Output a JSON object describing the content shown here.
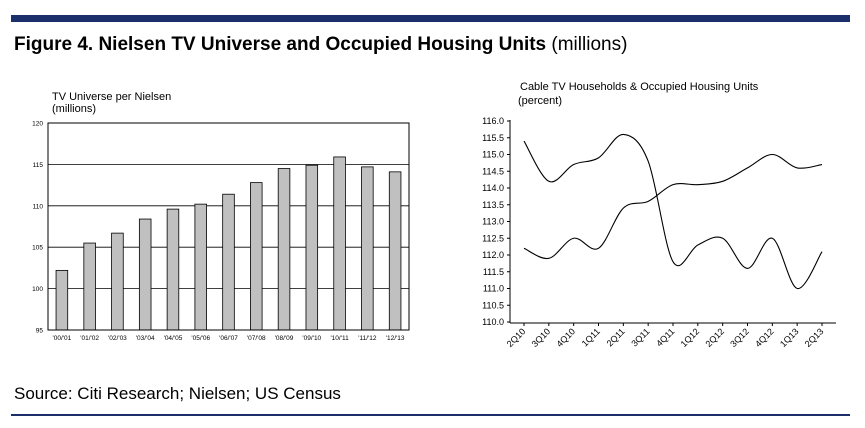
{
  "figure": {
    "title_bold": "Figure 4. Nielsen TV Universe and Occupied Housing Units",
    "title_light": "(millions)",
    "source": "Source: Citi Research; Nielsen; US Census",
    "rule_color": "#1b2f6b"
  },
  "chart_data": [
    {
      "type": "bar",
      "title": "TV Universe per Nielsen",
      "subtitle": "(millions)",
      "categories": [
        "'00/'01",
        "'01/'02",
        "'02/'03",
        "'03/'04",
        "'04/'05",
        "'05/'06",
        "'06/'07",
        "'07/'08",
        "'08/'09",
        "'09/'10",
        "'10/'11",
        "'11/'12",
        "'12/'13"
      ],
      "values": [
        102.2,
        105.5,
        106.7,
        108.4,
        109.6,
        110.2,
        111.4,
        112.8,
        114.5,
        114.9,
        115.9,
        114.7,
        114.1
      ],
      "ylim": [
        95,
        120
      ],
      "yticks": [
        95,
        100,
        105,
        110,
        115,
        120
      ],
      "grid": true,
      "bar_color": "#c0c0c0"
    },
    {
      "type": "line",
      "title": "Cable TV Households & Occupied Housing Units",
      "subtitle": "(percent)",
      "categories": [
        "2Q10",
        "3Q10",
        "4Q10",
        "1Q11",
        "2Q11",
        "3Q11",
        "4Q11",
        "1Q12",
        "2Q12",
        "3Q12",
        "4Q12",
        "1Q13",
        "2Q13"
      ],
      "ylim": [
        110.0,
        116.0
      ],
      "yticks": [
        "110.0",
        "110.5",
        "111.0",
        "111.5",
        "112.0",
        "112.5",
        "113.0",
        "113.5",
        "114.0",
        "114.5",
        "115.0",
        "115.5",
        "116.0"
      ],
      "grid": false,
      "series": [
        {
          "values": [
            115.4,
            114.2,
            114.7,
            114.9,
            115.6,
            114.8,
            111.8,
            112.3,
            112.5,
            111.6,
            112.5,
            111.0,
            112.1
          ]
        },
        {
          "values": [
            112.2,
            111.9,
            112.5,
            112.2,
            113.4,
            113.6,
            114.1,
            114.1,
            114.2,
            114.6,
            115.0,
            114.6,
            114.7
          ]
        }
      ]
    }
  ]
}
